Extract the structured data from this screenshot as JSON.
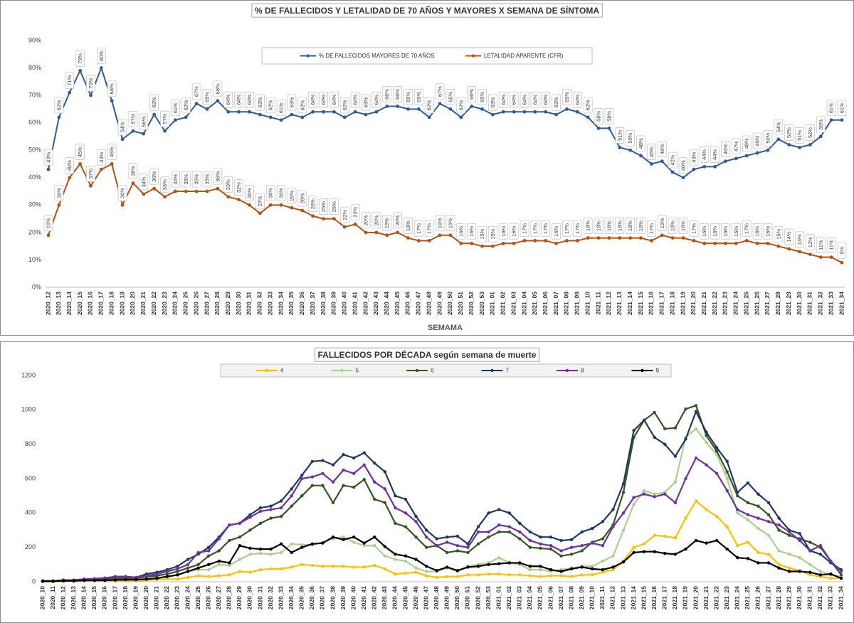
{
  "chart_data": [
    {
      "type": "line",
      "title": "% DE FALLECIDOS Y LETALIDAD DE 70 AÑOS Y MAYORES X SEMANA DE SÍNTOMA",
      "x_label": "SEMAMA",
      "legend": "top",
      "grid": false,
      "ylim": [
        0,
        90
      ],
      "yticks": [
        {
          "value": 0,
          "label": "0%"
        },
        {
          "value": 10,
          "label": "10%"
        },
        {
          "value": 20,
          "label": "20%"
        },
        {
          "value": 30,
          "label": "30%"
        },
        {
          "value": 40,
          "label": "40%"
        },
        {
          "value": 50,
          "label": "50%"
        },
        {
          "value": 60,
          "label": "60%"
        },
        {
          "value": 70,
          "label": "70%"
        },
        {
          "value": 80,
          "label": "80%"
        },
        {
          "value": 90,
          "label": "90%"
        }
      ],
      "categories": [
        "2020_12",
        "2020_13",
        "2020_14",
        "2020_15",
        "2020_16",
        "2020_17",
        "2020_18",
        "2020_19",
        "2020_20",
        "2020_21",
        "2020_22",
        "2020_23",
        "2020_24",
        "2020_25",
        "2020_26",
        "2020_27",
        "2020_28",
        "2020_29",
        "2020_30",
        "2020_31",
        "2020_32",
        "2020_33",
        "2020_34",
        "2020_35",
        "2020_36",
        "2020_37",
        "2020_38",
        "2020_39",
        "2020_40",
        "2020_41",
        "2020_42",
        "2020_43",
        "2020_44",
        "2020_45",
        "2020_46",
        "2020_47",
        "2020_48",
        "2020_49",
        "2020_50",
        "2020_51",
        "2020_52",
        "2020_53",
        "2021_01",
        "2021_02",
        "2021_03",
        "2021_04",
        "2021_05",
        "2021_06",
        "2021_07",
        "2021_08",
        "2021_09",
        "2021_10",
        "2021_11",
        "2021_12",
        "2021_13",
        "2021_14",
        "2021_15",
        "2021_16",
        "2021_17",
        "2021_18",
        "2021_19",
        "2021_20",
        "2021_21",
        "2021_22",
        "2021_23",
        "2021_24",
        "2021_25",
        "2021_26",
        "2021_27",
        "2021_28",
        "2021_29",
        "2021_30",
        "2021_31",
        "2021_32",
        "2021_33",
        "2021_34"
      ],
      "series": [
        {
          "name": "% DE FALLECIDOS MAYORES DE 70 AÑOS",
          "color": "#2e5d9a",
          "values": [
            43,
            62,
            71,
            79,
            70,
            80,
            68,
            54,
            57,
            56,
            63,
            57,
            61,
            62,
            67,
            65,
            68,
            64,
            64,
            64,
            63,
            62,
            61,
            63,
            62,
            64,
            64,
            64,
            62,
            64,
            63,
            64,
            66,
            66,
            65,
            65,
            62,
            67,
            65,
            62,
            66,
            65,
            63,
            64,
            64,
            64,
            64,
            64,
            63,
            65,
            64,
            62,
            58,
            58,
            51,
            50,
            48,
            45,
            46,
            42,
            40,
            43,
            44,
            44,
            46,
            47,
            48,
            49,
            50,
            54,
            52,
            51,
            52,
            55,
            61,
            61
          ],
          "value_labels": [
            "43%",
            "62%",
            "71%",
            "79%",
            "70%",
            "80%",
            "68%",
            "54%",
            "57%",
            "56%",
            "63%",
            "57%",
            "61%",
            "62%",
            "67%",
            "65%",
            "68%",
            "64%",
            "64%",
            "64%",
            "63%",
            "62%",
            "61%",
            "63%",
            "62%",
            "64%",
            "64%",
            "64%",
            "62%",
            "64%",
            "63%",
            "64%",
            "66%",
            "66%",
            "65%",
            "65%",
            "62%",
            "67%",
            "65%",
            "62%",
            "66%",
            "65%",
            "63%",
            "64%",
            "64%",
            "64%",
            "64%",
            "64%",
            "63%",
            "65%",
            "64%",
            "62%",
            "58%",
            "58%",
            "51%",
            "50%",
            "48%",
            "45%",
            "46%",
            "42%",
            "40%",
            "43%",
            "44%",
            "44%",
            "46%",
            "47%",
            "48%",
            "49%",
            "50%",
            "54%",
            "52%",
            "51%",
            "52%",
            "55%",
            "61%",
            "61%"
          ]
        },
        {
          "name": "LETALIDAD APARENTE (CFR)",
          "color": "#b8510f",
          "values": [
            19,
            30,
            40,
            45,
            37,
            43,
            45,
            30,
            38,
            34,
            36,
            33,
            35,
            35,
            35,
            35,
            36,
            33,
            32,
            30,
            27,
            30,
            30,
            29,
            28,
            26,
            25,
            25,
            22,
            23,
            20,
            20,
            19,
            20,
            18,
            17,
            17,
            19,
            19,
            16,
            16,
            15,
            15,
            16,
            16,
            17,
            17,
            17,
            16,
            17,
            17,
            18,
            18,
            18,
            18,
            18,
            18,
            17,
            19,
            18,
            18,
            17,
            16,
            16,
            16,
            16,
            17,
            16,
            16,
            15,
            14,
            13,
            12,
            11,
            11,
            9
          ],
          "value_labels": [
            "19%",
            "30%",
            "40%",
            "45%",
            "37%",
            "43%",
            "45%",
            "30%",
            "38%",
            "34%",
            "36%",
            "33%",
            "35%",
            "35%",
            "35%",
            "35%",
            "36%",
            "33%",
            "32%",
            "30%",
            "27%",
            "30%",
            "30%",
            "29%",
            "28%",
            "26%",
            "25%",
            "25%",
            "22%",
            "23%",
            "20%",
            "20%",
            "19%",
            "20%",
            "18%",
            "17%",
            "17%",
            "19%",
            "19%",
            "16%",
            "16%",
            "15%",
            "15%",
            "16%",
            "16%",
            "17%",
            "17%",
            "17%",
            "16%",
            "17%",
            "17%",
            "18%",
            "18%",
            "18%",
            "18%",
            "18%",
            "18%",
            "17%",
            "19%",
            "18%",
            "18%",
            "17%",
            "16%",
            "16%",
            "16%",
            "16%",
            "17%",
            "16%",
            "16%",
            "15%",
            "14%",
            "13%",
            "12%",
            "11%",
            "11%",
            "9%"
          ]
        }
      ]
    },
    {
      "type": "line",
      "title": "FALLECIDOS POR DÉCADA según semana de muerte",
      "legend": "top",
      "grid": false,
      "ylim": [
        0,
        1200
      ],
      "yticks": [
        0,
        200,
        400,
        600,
        800,
        1000,
        1200
      ],
      "categories": [
        "2020_10",
        "2020_11",
        "2020_12",
        "2020_13",
        "2020_14",
        "2020_15",
        "2020_16",
        "2020_17",
        "2020_18",
        "2020_19",
        "2020_20",
        "2020_21",
        "2020_22",
        "2020_23",
        "2020_24",
        "2020_25",
        "2020_26",
        "2020_27",
        "2020_28",
        "2020_29",
        "2020_30",
        "2020_31",
        "2020_32",
        "2020_33",
        "2020_34",
        "2020_35",
        "2020_36",
        "2020_37",
        "2020_38",
        "2020_39",
        "2020_40",
        "2020_41",
        "2020_42",
        "2020_43",
        "2020_44",
        "2020_45",
        "2020_46",
        "2020_47",
        "2020_48",
        "2020_49",
        "2020_50",
        "2020_51",
        "2020_52",
        "2020_53",
        "2021_01",
        "2021_02",
        "2021_03",
        "2021_04",
        "2021_05",
        "2021_06",
        "2021_07",
        "2021_08",
        "2021_09",
        "2021_10",
        "2021_11",
        "2021_12",
        "2021_13",
        "2021_14",
        "2021_15",
        "2021_16",
        "2021_17",
        "2021_18",
        "2021_19",
        "2021_20",
        "2021_21",
        "2021_22",
        "2021_23",
        "2021_24",
        "2021_25",
        "2021_26",
        "2021_27",
        "2021_28",
        "2021_29",
        "2021_30",
        "2021_31",
        "2021_32",
        "2021_33",
        "2021_34"
      ],
      "series": [
        {
          "name": "4",
          "color": "#ffc000",
          "values": [
            1,
            1,
            3,
            3,
            5,
            5,
            5,
            5,
            5,
            5,
            8,
            12,
            15,
            15,
            25,
            35,
            30,
            35,
            40,
            60,
            55,
            70,
            75,
            75,
            85,
            100,
            95,
            90,
            90,
            90,
            85,
            85,
            95,
            75,
            45,
            50,
            55,
            35,
            25,
            30,
            30,
            40,
            40,
            45,
            45,
            40,
            40,
            35,
            30,
            35,
            35,
            30,
            40,
            40,
            55,
            70,
            120,
            200,
            220,
            270,
            265,
            255,
            370,
            470,
            420,
            380,
            320,
            210,
            230,
            170,
            160,
            100,
            80,
            65,
            40,
            30,
            20,
            20
          ]
        },
        {
          "name": "5",
          "color": "#a9d18e",
          "values": [
            2,
            2,
            5,
            5,
            8,
            10,
            12,
            15,
            15,
            15,
            20,
            25,
            30,
            40,
            60,
            70,
            70,
            100,
            95,
            130,
            160,
            165,
            160,
            170,
            220,
            215,
            215,
            230,
            250,
            260,
            230,
            210,
            210,
            150,
            130,
            120,
            80,
            60,
            60,
            80,
            60,
            90,
            100,
            110,
            140,
            110,
            100,
            70,
            70,
            60,
            70,
            80,
            90,
            90,
            120,
            150,
            300,
            450,
            530,
            510,
            520,
            580,
            840,
            890,
            810,
            740,
            600,
            400,
            360,
            310,
            270,
            180,
            160,
            140,
            100,
            60,
            40,
            30
          ]
        },
        {
          "name": "6",
          "color": "#375623",
          "values": [
            3,
            3,
            8,
            8,
            10,
            12,
            15,
            20,
            20,
            20,
            30,
            35,
            45,
            60,
            80,
            100,
            150,
            180,
            240,
            260,
            300,
            340,
            370,
            380,
            440,
            500,
            560,
            560,
            460,
            560,
            550,
            595,
            480,
            460,
            340,
            320,
            260,
            200,
            210,
            170,
            180,
            170,
            220,
            260,
            290,
            290,
            250,
            200,
            195,
            190,
            150,
            160,
            180,
            230,
            250,
            330,
            520,
            840,
            940,
            985,
            890,
            895,
            1005,
            1025,
            850,
            760,
            640,
            500,
            460,
            440,
            390,
            300,
            270,
            250,
            230,
            200,
            120,
            40
          ]
        },
        {
          "name": "7",
          "color": "#1f3864",
          "values": [
            5,
            5,
            10,
            10,
            15,
            15,
            20,
            30,
            30,
            25,
            45,
            55,
            70,
            90,
            130,
            160,
            200,
            260,
            330,
            340,
            390,
            430,
            440,
            470,
            540,
            620,
            700,
            705,
            680,
            740,
            720,
            750,
            690,
            640,
            500,
            480,
            380,
            300,
            250,
            260,
            265,
            220,
            320,
            400,
            420,
            400,
            340,
            290,
            260,
            260,
            240,
            245,
            290,
            310,
            350,
            420,
            570,
            880,
            940,
            840,
            800,
            730,
            830,
            990,
            870,
            780,
            700,
            520,
            575,
            510,
            460,
            370,
            300,
            280,
            180,
            160,
            110,
            70
          ]
        },
        {
          "name": "8",
          "color": "#7030a0",
          "values": [
            5,
            5,
            8,
            10,
            15,
            18,
            22,
            30,
            28,
            25,
            35,
            45,
            60,
            75,
            100,
            170,
            180,
            250,
            330,
            340,
            375,
            410,
            420,
            430,
            500,
            600,
            610,
            630,
            580,
            650,
            630,
            680,
            580,
            540,
            430,
            400,
            350,
            260,
            210,
            230,
            210,
            200,
            290,
            290,
            330,
            320,
            290,
            240,
            220,
            210,
            180,
            200,
            210,
            225,
            210,
            320,
            400,
            490,
            510,
            495,
            510,
            460,
            600,
            720,
            680,
            630,
            530,
            420,
            390,
            370,
            350,
            330,
            290,
            240,
            180,
            210,
            120,
            60
          ]
        },
        {
          "name": "9",
          "color": "#000000",
          "values": [
            3,
            3,
            5,
            5,
            8,
            8,
            8,
            10,
            12,
            12,
            15,
            20,
            30,
            40,
            60,
            80,
            100,
            120,
            110,
            210,
            195,
            190,
            190,
            220,
            170,
            200,
            220,
            225,
            260,
            245,
            260,
            225,
            260,
            205,
            160,
            150,
            130,
            90,
            65,
            85,
            65,
            85,
            90,
            100,
            105,
            110,
            110,
            90,
            90,
            70,
            60,
            75,
            85,
            75,
            70,
            85,
            115,
            170,
            175,
            175,
            165,
            160,
            190,
            240,
            225,
            240,
            190,
            140,
            135,
            110,
            110,
            80,
            60,
            60,
            55,
            40,
            45,
            20
          ]
        }
      ]
    }
  ]
}
